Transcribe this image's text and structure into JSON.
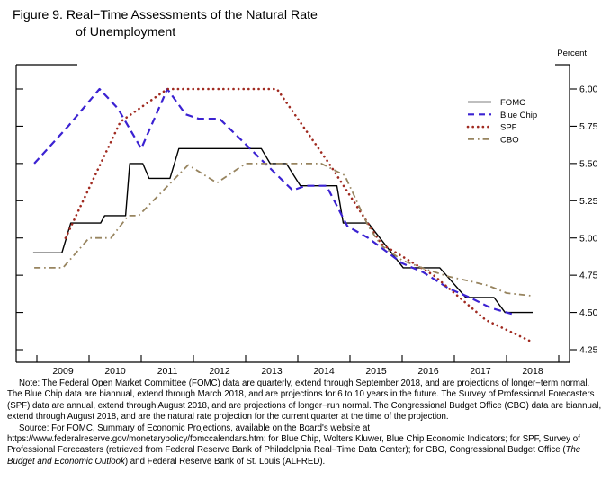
{
  "header": {
    "title_line1": "Figure 9.  Real−Time Assessments of the Natural Rate",
    "title_line2": "of Unemployment"
  },
  "chart": {
    "unit_label": "Percent"
  },
  "notes": {
    "note": "Note: The Federal Open Market Committee (FOMC) data are quarterly, extend through September 2018, and are projections of longer−term normal. The Blue Chip data are biannual, extend through March 2018, and are projections for 6 to 10 years in the future. The Survey of Professional Forecasters (SPF) data are annual, extend through August 2018, and are projections of longer−run normal. The Congressional Budget Office (CBO) data are biannual, extend through August 2018, and are the natural rate projection for the current quarter at the time of the projection.",
    "source_part1": "Source:  For FOMC, Summary of Economic Projections, available on the Board's website at https://www.federalreserve.gov/monetarypolicy/fomccalendars.htm; for Blue Chip, Wolters Kluwer, Blue Chip Economic Indicators; for SPF, Survey of Professional Forecasters (retrieved from Federal Reserve Bank of Philadelphia Real−Time Data Center); for CBO, Congressional Budget Office (",
    "source_italic": "The Budget and Economic Outlook",
    "source_part2": ") and Federal Reserve Bank of St. Louis (ALFRED)."
  },
  "chart_data": {
    "type": "line",
    "title": "Figure 9. Real−Time Assessments of the Natural Rate of Unemployment",
    "ylabel": "Percent",
    "xlabel": "",
    "grid": false,
    "legend_position": "upper right inside",
    "x_labels": [
      "2009",
      "2010",
      "2011",
      "2012",
      "2013",
      "2014",
      "2015",
      "2016",
      "2017",
      "2018"
    ],
    "y_ticks": [
      "6.00",
      "5.75",
      "5.50",
      "5.25",
      "5.00",
      "4.75",
      "4.50",
      "4.25"
    ],
    "ylim": [
      4.165,
      6.16
    ],
    "xlim_years": [
      2008.6,
      2019.2
    ],
    "series": [
      {
        "id": "fomc",
        "name": "FOMC",
        "color": "#000000",
        "style": "solid",
        "points": [
          [
            2008.93,
            4.9
          ],
          [
            2009.48,
            4.9
          ],
          [
            2009.65,
            5.1
          ],
          [
            2010.22,
            5.1
          ],
          [
            2010.3,
            5.15
          ],
          [
            2010.7,
            5.15
          ],
          [
            2010.78,
            5.5
          ],
          [
            2011.03,
            5.5
          ],
          [
            2011.15,
            5.4
          ],
          [
            2011.55,
            5.4
          ],
          [
            2011.72,
            5.6
          ],
          [
            2013.3,
            5.6
          ],
          [
            2013.47,
            5.5
          ],
          [
            2013.78,
            5.5
          ],
          [
            2014.05,
            5.35
          ],
          [
            2014.75,
            5.35
          ],
          [
            2014.87,
            5.1
          ],
          [
            2015.35,
            5.1
          ],
          [
            2016.02,
            4.8
          ],
          [
            2016.72,
            4.8
          ],
          [
            2017.22,
            4.6
          ],
          [
            2017.76,
            4.6
          ],
          [
            2017.97,
            4.5
          ],
          [
            2018.5,
            4.5
          ]
        ]
      },
      {
        "id": "bluechip",
        "name": "Blue Chip",
        "color": "#3b22d2",
        "style": "dashed",
        "points": [
          [
            2008.95,
            5.5
          ],
          [
            2009.6,
            5.75
          ],
          [
            2010.2,
            6.0
          ],
          [
            2010.55,
            5.87
          ],
          [
            2011.0,
            5.6
          ],
          [
            2011.5,
            6.0
          ],
          [
            2011.85,
            5.83
          ],
          [
            2012.1,
            5.8
          ],
          [
            2012.5,
            5.8
          ],
          [
            2013.9,
            5.32
          ],
          [
            2014.15,
            5.35
          ],
          [
            2014.55,
            5.35
          ],
          [
            2014.95,
            5.08
          ],
          [
            2015.35,
            5.0
          ],
          [
            2016.0,
            4.83
          ],
          [
            2016.4,
            4.77
          ],
          [
            2016.9,
            4.66
          ],
          [
            2017.3,
            4.6
          ],
          [
            2017.7,
            4.53
          ],
          [
            2018.1,
            4.49
          ]
        ]
      },
      {
        "id": "spf",
        "name": "SPF",
        "color": "#a02a20",
        "style": "dotted",
        "points": [
          [
            2009.55,
            5.0
          ],
          [
            2010.6,
            5.78
          ],
          [
            2011.5,
            6.0
          ],
          [
            2013.6,
            6.0
          ],
          [
            2014.6,
            5.5
          ],
          [
            2015.6,
            4.96
          ],
          [
            2016.6,
            4.75
          ],
          [
            2017.6,
            4.45
          ],
          [
            2018.5,
            4.3
          ]
        ]
      },
      {
        "id": "cbo",
        "name": "CBO",
        "color": "#97845f",
        "style": "dashdot",
        "points": [
          [
            2008.95,
            4.8
          ],
          [
            2009.5,
            4.8
          ],
          [
            2010.0,
            5.0
          ],
          [
            2010.42,
            5.0
          ],
          [
            2010.75,
            5.15
          ],
          [
            2010.95,
            5.15
          ],
          [
            2011.9,
            5.49
          ],
          [
            2012.45,
            5.37
          ],
          [
            2013.0,
            5.5
          ],
          [
            2014.45,
            5.5
          ],
          [
            2014.9,
            5.42
          ],
          [
            2015.35,
            5.08
          ],
          [
            2015.6,
            4.95
          ],
          [
            2016.0,
            4.85
          ],
          [
            2016.45,
            4.79
          ],
          [
            2016.9,
            4.74
          ],
          [
            2017.3,
            4.71
          ],
          [
            2017.65,
            4.68
          ],
          [
            2018.0,
            4.63
          ],
          [
            2018.52,
            4.61
          ]
        ]
      }
    ]
  }
}
